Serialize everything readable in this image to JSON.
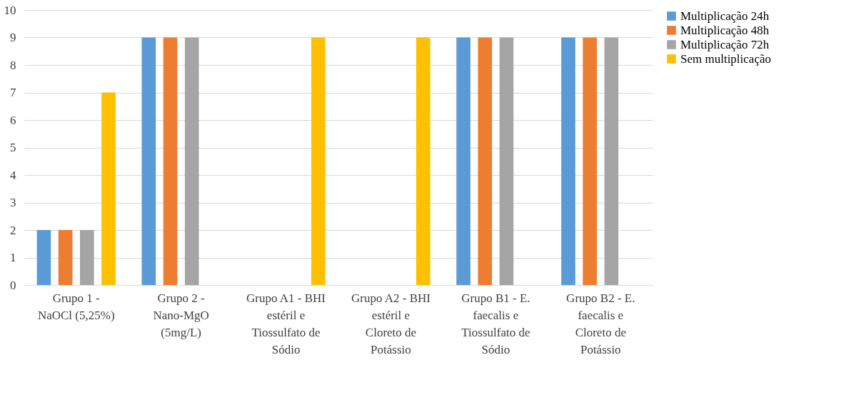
{
  "chart_data": {
    "type": "bar",
    "categories": [
      "Grupo 1 - NaOCl (5,25%)",
      "Grupo 2 - Nano-MgO (5mg/L)",
      "Grupo A1 - BHI estéril e Tiossulfato de Sódio",
      "Grupo A2 - BHI estéril e Cloreto de Potássio",
      "Grupo B1 - E. faecalis e Tiossulfato de Sódio",
      "Grupo B2 - E. faecalis e Cloreto de Potássio"
    ],
    "series": [
      {
        "name": "Multiplicação 24h",
        "color": "#5b9bd5",
        "values": [
          2,
          9,
          null,
          null,
          9,
          9
        ]
      },
      {
        "name": "Multiplicação 48h",
        "color": "#ed7d31",
        "values": [
          2,
          9,
          null,
          null,
          9,
          9
        ]
      },
      {
        "name": "Multiplicação 72h",
        "color": "#a5a5a5",
        "values": [
          2,
          9,
          null,
          null,
          9,
          9
        ]
      },
      {
        "name": "Sem multiplicação",
        "color": "#ffc000",
        "values": [
          7,
          null,
          9,
          9,
          null,
          null
        ]
      }
    ],
    "ylim": [
      0,
      10
    ],
    "yticks": [
      0,
      1,
      2,
      3,
      4,
      5,
      6,
      7,
      8,
      9,
      10
    ],
    "grid": "y",
    "legend": "right"
  }
}
